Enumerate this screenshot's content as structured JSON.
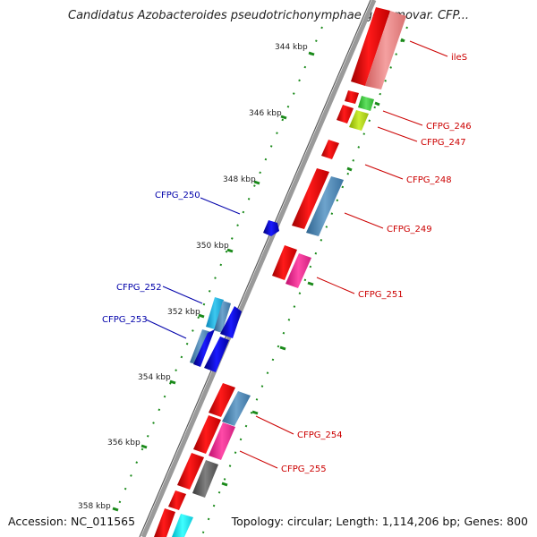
{
  "title": "Candidatus Azobacteroides pseudotrichonymphae genomovar. CFP...",
  "footer": {
    "accession": "Accession: NC_011565",
    "topology": "Topology: circular; Length: 1,114,206 bp; Genes: 800"
  },
  "ticks": [
    "344 kbp",
    "346 kbp",
    "348 kbp",
    "350 kbp",
    "352 kbp",
    "354 kbp",
    "356 kbp",
    "358 kbp"
  ],
  "colors": {
    "forward_label": "#cc0000",
    "reverse_label": "#0000aa",
    "backbone": "#808080",
    "tick": "#1a8a1a"
  },
  "genes": [
    {
      "name": "ileS",
      "strand": "forward"
    },
    {
      "name": "CFPG_246",
      "strand": "forward"
    },
    {
      "name": "CFPG_247",
      "strand": "forward"
    },
    {
      "name": "CFPG_248",
      "strand": "forward"
    },
    {
      "name": "CFPG_249",
      "strand": "forward"
    },
    {
      "name": "CFPG_250",
      "strand": "reverse"
    },
    {
      "name": "CFPG_251",
      "strand": "forward"
    },
    {
      "name": "CFPG_252",
      "strand": "reverse"
    },
    {
      "name": "CFPG_253",
      "strand": "reverse"
    },
    {
      "name": "CFPG_254",
      "strand": "forward"
    },
    {
      "name": "CFPG_255",
      "strand": "forward"
    }
  ]
}
